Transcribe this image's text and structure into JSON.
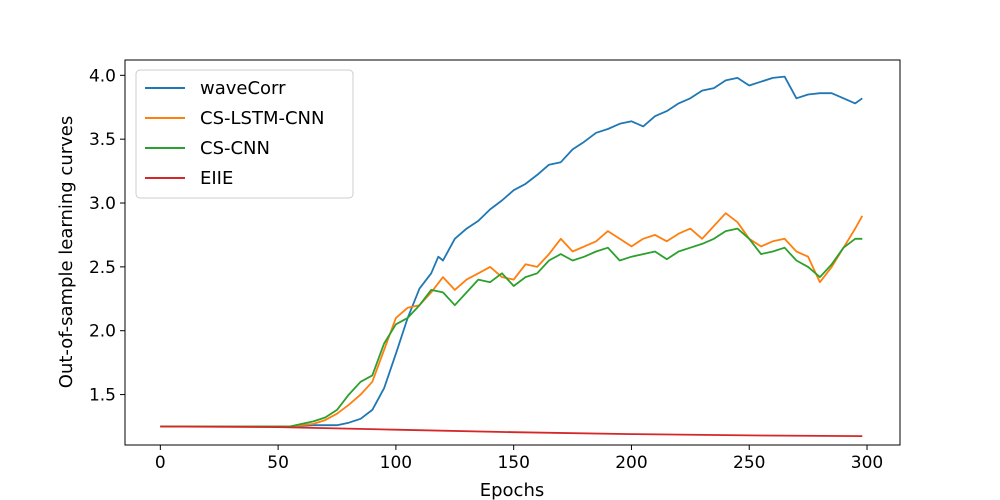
{
  "chart_data": {
    "type": "line",
    "title": "",
    "xlabel": "Epochs",
    "ylabel": "Out-of-sample learning curves",
    "xlim": [
      -15,
      314
    ],
    "ylim": [
      1.105,
      4.12
    ],
    "xticks": [
      0,
      50,
      100,
      150,
      200,
      250,
      300
    ],
    "yticks": [
      1.5,
      2.0,
      2.5,
      3.0,
      3.5,
      4.0
    ],
    "xtick_labels": [
      "0",
      "50",
      "100",
      "150",
      "200",
      "250",
      "300"
    ],
    "ytick_labels": [
      "1.5",
      "2.0",
      "2.5",
      "3.0",
      "3.5",
      "4.0"
    ],
    "grid": false,
    "legend_position": "upper-left",
    "series": [
      {
        "name": "waveCorr",
        "color": "#1f77b4",
        "x": [
          0,
          20,
          40,
          55,
          65,
          75,
          80,
          85,
          90,
          95,
          100,
          105,
          110,
          115,
          118,
          120,
          125,
          130,
          135,
          140,
          145,
          150,
          155,
          160,
          165,
          170,
          175,
          180,
          185,
          190,
          195,
          200,
          205,
          210,
          215,
          220,
          225,
          230,
          235,
          240,
          245,
          250,
          255,
          260,
          265,
          270,
          275,
          280,
          285,
          290,
          295,
          298
        ],
        "y": [
          1.25,
          1.25,
          1.25,
          1.25,
          1.26,
          1.26,
          1.28,
          1.31,
          1.38,
          1.55,
          1.82,
          2.1,
          2.33,
          2.45,
          2.58,
          2.55,
          2.72,
          2.8,
          2.86,
          2.95,
          3.02,
          3.1,
          3.15,
          3.22,
          3.3,
          3.32,
          3.42,
          3.48,
          3.55,
          3.58,
          3.62,
          3.64,
          3.6,
          3.68,
          3.72,
          3.78,
          3.82,
          3.88,
          3.9,
          3.96,
          3.98,
          3.92,
          3.95,
          3.98,
          3.99,
          3.82,
          3.85,
          3.86,
          3.86,
          3.82,
          3.78,
          3.82
        ]
      },
      {
        "name": "CS-LSTM-CNN",
        "color": "#ff7f0e",
        "x": [
          0,
          20,
          40,
          55,
          65,
          70,
          75,
          80,
          85,
          90,
          95,
          100,
          105,
          110,
          115,
          120,
          125,
          130,
          135,
          140,
          145,
          150,
          155,
          160,
          165,
          170,
          175,
          180,
          185,
          190,
          195,
          200,
          205,
          210,
          215,
          220,
          225,
          230,
          235,
          240,
          245,
          250,
          255,
          260,
          265,
          270,
          275,
          280,
          285,
          290,
          295,
          298
        ],
        "y": [
          1.25,
          1.25,
          1.25,
          1.25,
          1.27,
          1.3,
          1.35,
          1.42,
          1.5,
          1.6,
          1.85,
          2.1,
          2.18,
          2.2,
          2.3,
          2.42,
          2.32,
          2.4,
          2.45,
          2.5,
          2.42,
          2.4,
          2.52,
          2.5,
          2.6,
          2.72,
          2.62,
          2.66,
          2.7,
          2.78,
          2.72,
          2.66,
          2.72,
          2.75,
          2.7,
          2.76,
          2.8,
          2.72,
          2.82,
          2.92,
          2.85,
          2.72,
          2.66,
          2.7,
          2.72,
          2.62,
          2.58,
          2.38,
          2.5,
          2.65,
          2.8,
          2.9
        ]
      },
      {
        "name": "CS-CNN",
        "color": "#2ca02c",
        "x": [
          0,
          20,
          40,
          55,
          60,
          65,
          70,
          75,
          80,
          85,
          90,
          95,
          100,
          105,
          110,
          115,
          120,
          125,
          130,
          135,
          140,
          145,
          150,
          155,
          160,
          165,
          170,
          175,
          180,
          185,
          190,
          195,
          200,
          205,
          210,
          215,
          220,
          225,
          230,
          235,
          240,
          245,
          250,
          255,
          260,
          265,
          270,
          275,
          280,
          285,
          290,
          295,
          298
        ],
        "y": [
          1.25,
          1.25,
          1.25,
          1.25,
          1.27,
          1.29,
          1.32,
          1.38,
          1.5,
          1.6,
          1.65,
          1.9,
          2.05,
          2.1,
          2.2,
          2.32,
          2.3,
          2.2,
          2.3,
          2.4,
          2.38,
          2.45,
          2.35,
          2.42,
          2.45,
          2.55,
          2.6,
          2.55,
          2.58,
          2.62,
          2.65,
          2.55,
          2.58,
          2.6,
          2.62,
          2.56,
          2.62,
          2.65,
          2.68,
          2.72,
          2.78,
          2.8,
          2.72,
          2.6,
          2.62,
          2.65,
          2.55,
          2.5,
          2.42,
          2.52,
          2.65,
          2.72,
          2.72
        ]
      },
      {
        "name": "EIIE",
        "color": "#d62728",
        "x": [
          0,
          50,
          100,
          150,
          200,
          250,
          298
        ],
        "y": [
          1.25,
          1.245,
          1.225,
          1.205,
          1.19,
          1.18,
          1.175
        ]
      }
    ]
  }
}
